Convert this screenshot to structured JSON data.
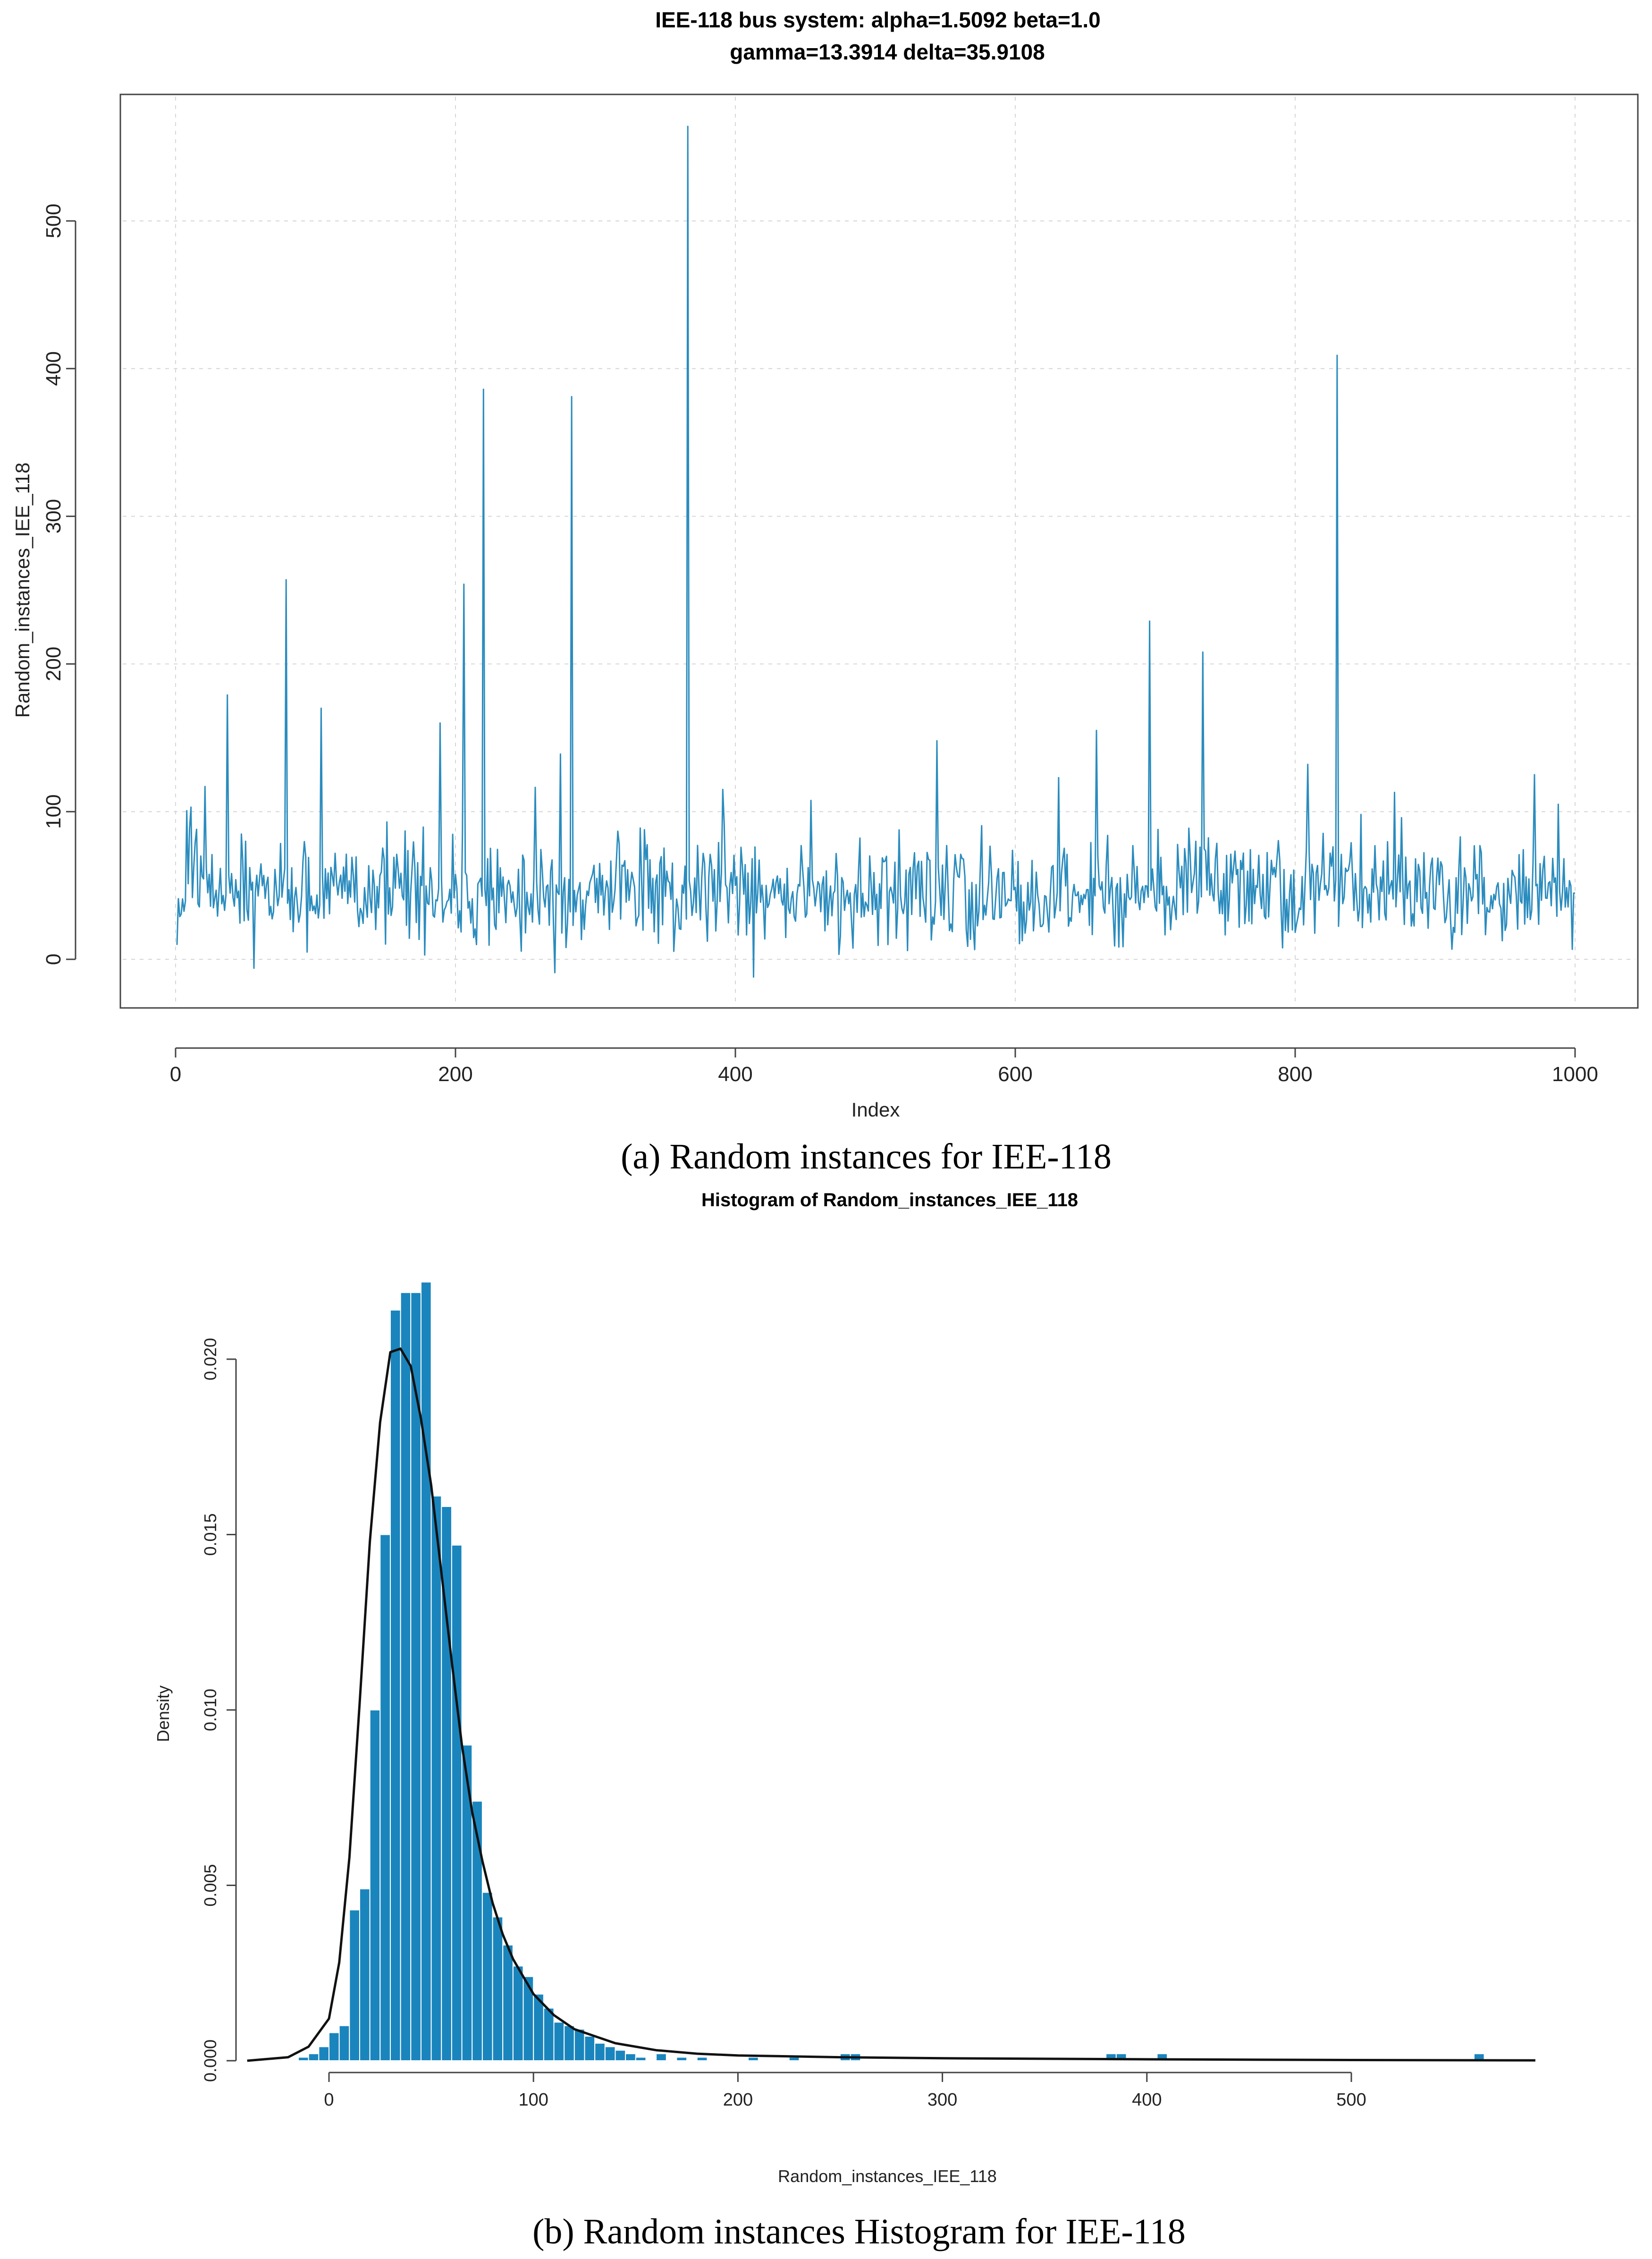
{
  "colors": {
    "series": "#2b8cbe",
    "bars": "#1a85bd",
    "curve": "#111111",
    "grid": "#d6d6d6"
  },
  "chart_data": [
    {
      "type": "line",
      "title_lines": [
        "IEE-118 bus system: alpha=1.5092 beta=1.0",
        "gamma=13.3914 delta=35.9108"
      ],
      "xlabel": "Index",
      "ylabel": "Random_instances_IEE_118",
      "caption": "(a) Random instances for IEE-118",
      "x_ticks": [
        "0",
        "200",
        "400",
        "600",
        "800",
        "1000"
      ],
      "y_ticks": [
        "0",
        "100",
        "200",
        "300",
        "400",
        "500"
      ],
      "xlim": [
        0,
        1000
      ],
      "ylim": [
        -12,
        565
      ],
      "n_points": 1000,
      "baseline_mean": 45,
      "grid": true,
      "spikes": [
        {
          "x": 10,
          "y": 103
        },
        {
          "x": 14,
          "y": 88
        },
        {
          "x": 20,
          "y": 117
        },
        {
          "x": 36,
          "y": 179
        },
        {
          "x": 55,
          "y": -6
        },
        {
          "x": 78,
          "y": 257
        },
        {
          "x": 103,
          "y": 170
        },
        {
          "x": 150,
          "y": 93
        },
        {
          "x": 188,
          "y": 160
        },
        {
          "x": 205,
          "y": 254
        },
        {
          "x": 219,
          "y": 386
        },
        {
          "x": 270,
          "y": -9
        },
        {
          "x": 274,
          "y": 139
        },
        {
          "x": 282,
          "y": 381
        },
        {
          "x": 365,
          "y": 564
        },
        {
          "x": 390,
          "y": 115
        },
        {
          "x": 412,
          "y": -12
        },
        {
          "x": 543,
          "y": 148
        },
        {
          "x": 630,
          "y": 123
        },
        {
          "x": 657,
          "y": 155
        },
        {
          "x": 695,
          "y": 229
        },
        {
          "x": 733,
          "y": 208
        },
        {
          "x": 808,
          "y": 132
        },
        {
          "x": 829,
          "y": 409
        },
        {
          "x": 870,
          "y": 113
        },
        {
          "x": 970,
          "y": 125
        },
        {
          "x": 987,
          "y": 105
        }
      ]
    },
    {
      "type": "bar",
      "title": "Histogram of Random_instances_IEE_118",
      "xlabel": "Random_instances_IEE_118",
      "ylabel": "Density",
      "caption": "(b) Random instances Histogram for IEE-118",
      "x_ticks": [
        "0",
        "100",
        "200",
        "300",
        "400",
        "500"
      ],
      "y_ticks": [
        "0.000",
        "0.005",
        "0.010",
        "0.015",
        "0.020"
      ],
      "xlim": [
        -40,
        590
      ],
      "ylim": [
        0,
        0.0222
      ],
      "bin_width": 5,
      "bins": [
        [
          -15,
          0.0001
        ],
        [
          -10,
          0.0002
        ],
        [
          -5,
          0.0004
        ],
        [
          0,
          0.0008
        ],
        [
          5,
          0.001
        ],
        [
          10,
          0.0043
        ],
        [
          15,
          0.0049
        ],
        [
          20,
          0.01
        ],
        [
          25,
          0.015
        ],
        [
          30,
          0.0214
        ],
        [
          35,
          0.0219
        ],
        [
          40,
          0.0219
        ],
        [
          45,
          0.0222
        ],
        [
          50,
          0.0161
        ],
        [
          55,
          0.0158
        ],
        [
          60,
          0.0147
        ],
        [
          65,
          0.009
        ],
        [
          70,
          0.0074
        ],
        [
          75,
          0.0048
        ],
        [
          80,
          0.0041
        ],
        [
          85,
          0.0033
        ],
        [
          90,
          0.0027
        ],
        [
          95,
          0.0024
        ],
        [
          100,
          0.0019
        ],
        [
          105,
          0.0015
        ],
        [
          110,
          0.0011
        ],
        [
          115,
          0.001
        ],
        [
          120,
          0.0009
        ],
        [
          125,
          0.0007
        ],
        [
          130,
          0.0005
        ],
        [
          135,
          0.0004
        ],
        [
          140,
          0.0003
        ],
        [
          145,
          0.0002
        ],
        [
          150,
          0.0001
        ],
        [
          160,
          0.0002
        ],
        [
          170,
          0.0001
        ],
        [
          180,
          0.0001
        ],
        [
          205,
          0.0001
        ],
        [
          225,
          0.0001
        ],
        [
          250,
          0.0002
        ],
        [
          255,
          0.0002
        ],
        [
          380,
          0.0002
        ],
        [
          385,
          0.0002
        ],
        [
          405,
          0.0002
        ],
        [
          560,
          0.0002
        ]
      ],
      "density_curve": [
        [
          -40,
          0
        ],
        [
          -20,
          0.0001
        ],
        [
          -10,
          0.0004
        ],
        [
          0,
          0.0012
        ],
        [
          5,
          0.0028
        ],
        [
          10,
          0.0058
        ],
        [
          15,
          0.0102
        ],
        [
          20,
          0.0148
        ],
        [
          25,
          0.0182
        ],
        [
          30,
          0.0202
        ],
        [
          35,
          0.0203
        ],
        [
          40,
          0.0198
        ],
        [
          45,
          0.0183
        ],
        [
          50,
          0.0164
        ],
        [
          55,
          0.0139
        ],
        [
          60,
          0.0114
        ],
        [
          65,
          0.009
        ],
        [
          70,
          0.0071
        ],
        [
          75,
          0.0057
        ],
        [
          80,
          0.0045
        ],
        [
          85,
          0.0036
        ],
        [
          90,
          0.0029
        ],
        [
          95,
          0.0024
        ],
        [
          100,
          0.0019
        ],
        [
          110,
          0.0013
        ],
        [
          120,
          0.0009
        ],
        [
          140,
          0.0005
        ],
        [
          160,
          0.0003
        ],
        [
          180,
          0.0002
        ],
        [
          200,
          0.00015
        ],
        [
          250,
          0.0001
        ],
        [
          300,
          7e-05
        ],
        [
          400,
          4e-05
        ],
        [
          500,
          2e-05
        ],
        [
          590,
          1e-05
        ]
      ]
    }
  ]
}
